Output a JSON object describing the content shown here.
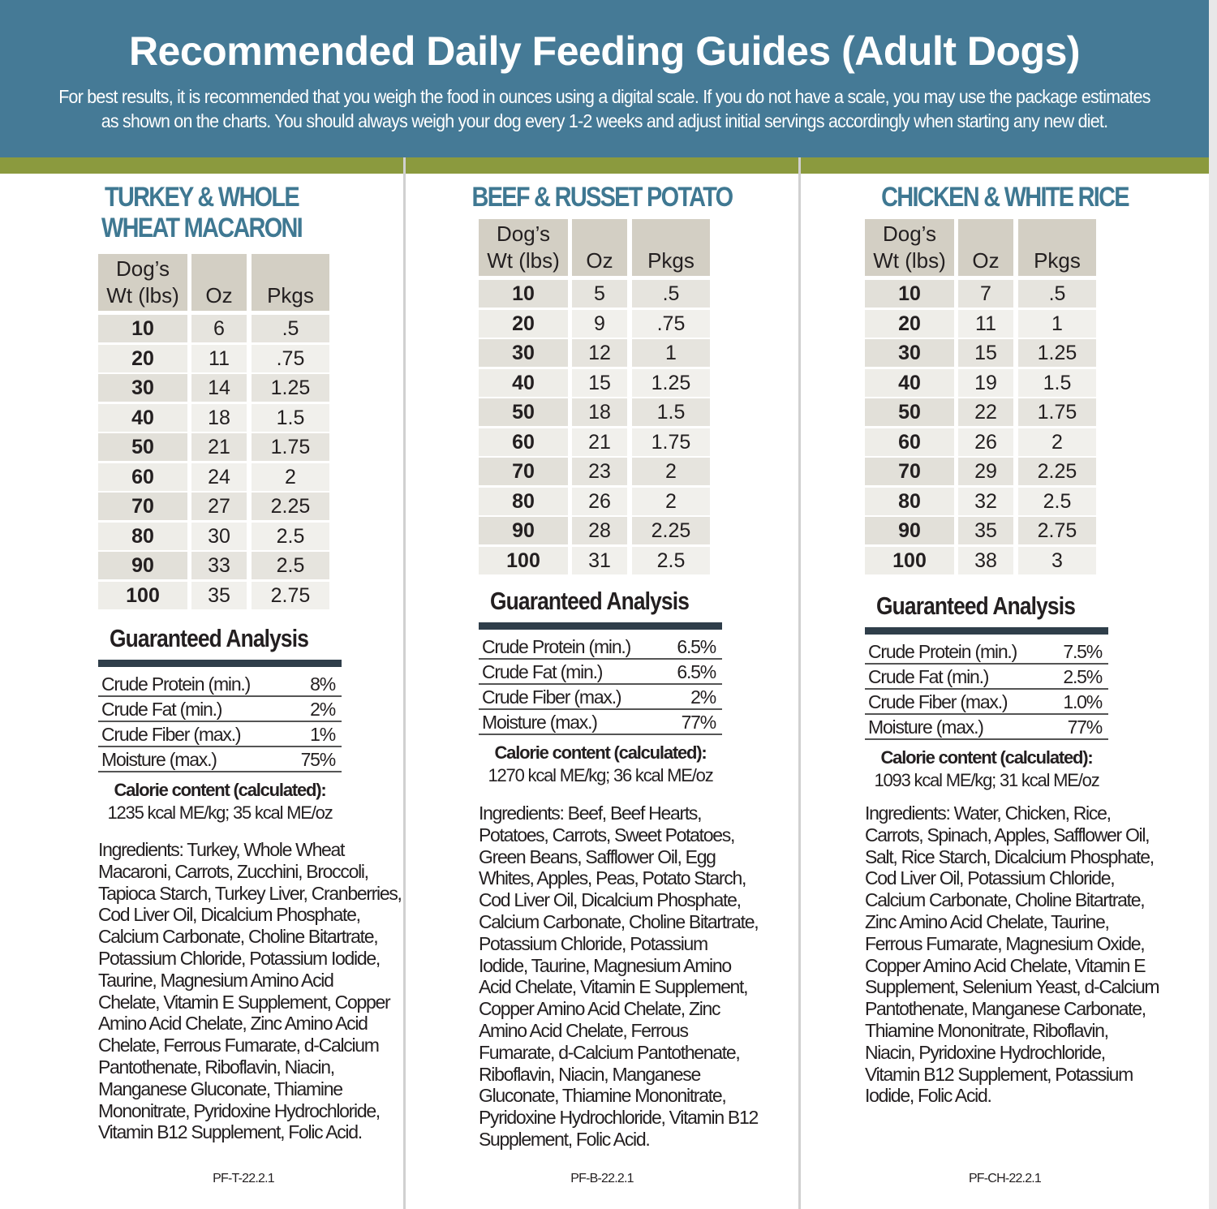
{
  "header": {
    "title": "Recommended Daily Feeding Guides (Adult Dogs)",
    "subtitle_line1": "For best results, it is recommended that you weigh the food in ounces using a digital scale. If you do not have a scale, you may use the package estimates",
    "subtitle_line2": "as shown on the charts. You should always weigh your dog every 1-2 weeks and adjust initial servings accordingly when starting any new diet."
  },
  "colors": {
    "header_bg": "#457a96",
    "stripe": "#8b9a3e",
    "product_title": "#3f7892",
    "table_header": "#d3cfc4"
  },
  "columns_headers": {
    "weight": [
      "Dog’s",
      "Wt (lbs)"
    ],
    "oz": "Oz",
    "pkgs": "Pkgs"
  },
  "analysis_title": "Guaranteed Analysis",
  "calorie_heading": "Calorie content (calculated):",
  "products": [
    {
      "title_lines": [
        "TURKEY & WHOLE",
        "WHEAT MACARONI"
      ],
      "rows": [
        [
          "10",
          "6",
          ".5"
        ],
        [
          "20",
          "11",
          ".75"
        ],
        [
          "30",
          "14",
          "1.25"
        ],
        [
          "40",
          "18",
          "1.5"
        ],
        [
          "50",
          "21",
          "1.75"
        ],
        [
          "60",
          "24",
          "2"
        ],
        [
          "70",
          "27",
          "2.25"
        ],
        [
          "80",
          "30",
          "2.5"
        ],
        [
          "90",
          "33",
          "2.5"
        ],
        [
          "100",
          "35",
          "2.75"
        ]
      ],
      "analysis": [
        [
          "Crude Protein (min.)",
          "8%"
        ],
        [
          "Crude Fat (min.)",
          "2%"
        ],
        [
          "Crude Fiber (max.)",
          "1%"
        ],
        [
          "Moisture (max.)",
          "75%"
        ]
      ],
      "calories": "1235 kcal ME/kg;  35 kcal ME/oz",
      "ingredients": [
        "Ingredients: Turkey, Whole Wheat",
        "Macaroni, Carrots, Zucchini, Broccoli,",
        "Tapioca Starch, Turkey Liver, Cranberries,",
        "Cod Liver Oil, Dicalcium Phosphate,",
        "Calcium Carbonate, Choline Bitartrate,",
        "Potassium Chloride, Potassium Iodide,",
        "Taurine, Magnesium Amino Acid",
        "Chelate, Vitamin E Supplement, Copper",
        "Amino Acid Chelate, Zinc Amino Acid",
        "Chelate, Ferrous Fumarate, d-Calcium",
        "Pantothenate, Riboflavin, Niacin,",
        "Manganese Gluconate, Thiamine",
        "Mononitrate, Pyridoxine Hydrochloride,",
        "Vitamin B12 Supplement, Folic Acid."
      ],
      "code": "PF-T-22.2.1"
    },
    {
      "title_lines": [
        "BEEF & RUSSET POTATO"
      ],
      "rows": [
        [
          "10",
          "5",
          ".5"
        ],
        [
          "20",
          "9",
          ".75"
        ],
        [
          "30",
          "12",
          "1"
        ],
        [
          "40",
          "15",
          "1.25"
        ],
        [
          "50",
          "18",
          "1.5"
        ],
        [
          "60",
          "21",
          "1.75"
        ],
        [
          "70",
          "23",
          "2"
        ],
        [
          "80",
          "26",
          "2"
        ],
        [
          "90",
          "28",
          "2.25"
        ],
        [
          "100",
          "31",
          "2.5"
        ]
      ],
      "analysis": [
        [
          "Crude Protein (min.)",
          "6.5%"
        ],
        [
          "Crude Fat (min.)",
          "6.5%"
        ],
        [
          "Crude Fiber (max.)",
          "2%"
        ],
        [
          "Moisture (max.)",
          "77%"
        ]
      ],
      "calories": "1270 kcal ME/kg;  36 kcal ME/oz",
      "ingredients": [
        "Ingredients: Beef, Beef Hearts,",
        "Potatoes, Carrots, Sweet Potatoes,",
        "Green Beans, Safflower Oil, Egg",
        "Whites, Apples, Peas, Potato Starch,",
        "Cod Liver Oil, Dicalcium Phosphate,",
        "Calcium Carbonate, Choline Bitartrate,",
        "Potassium Chloride, Potassium",
        "Iodide, Taurine, Magnesium Amino",
        "Acid Chelate, Vitamin E Supplement,",
        "Copper Amino Acid Chelate, Zinc",
        "Amino Acid Chelate, Ferrous",
        "Fumarate, d-Calcium Pantothenate,",
        "Riboflavin, Niacin, Manganese",
        "Gluconate, Thiamine Mononitrate,",
        "Pyridoxine Hydrochloride, Vitamin B12",
        "Supplement, Folic Acid."
      ],
      "code": "PF-B-22.2.1"
    },
    {
      "title_lines": [
        "CHICKEN & WHITE RICE"
      ],
      "rows": [
        [
          "10",
          "7",
          ".5"
        ],
        [
          "20",
          "11",
          "1"
        ],
        [
          "30",
          "15",
          "1.25"
        ],
        [
          "40",
          "19",
          "1.5"
        ],
        [
          "50",
          "22",
          "1.75"
        ],
        [
          "60",
          "26",
          "2"
        ],
        [
          "70",
          "29",
          "2.25"
        ],
        [
          "80",
          "32",
          "2.5"
        ],
        [
          "90",
          "35",
          "2.75"
        ],
        [
          "100",
          "38",
          "3"
        ]
      ],
      "analysis": [
        [
          "Crude Protein (min.)",
          "7.5%"
        ],
        [
          "Crude Fat (min.)",
          "2.5%"
        ],
        [
          "Crude Fiber (max.)",
          "1.0%"
        ],
        [
          "Moisture (max.)",
          "77%"
        ]
      ],
      "calories": "1093 kcal ME/kg; 31 kcal ME/oz",
      "ingredients": [
        "Ingredients: Water, Chicken, Rice,",
        "Carrots, Spinach, Apples, Safflower Oil,",
        "Salt, Rice Starch, Dicalcium Phosphate,",
        "Cod Liver Oil, Potassium Chloride,",
        "Calcium Carbonate, Choline Bitartrate,",
        "Zinc Amino Acid Chelate, Taurine,",
        "Ferrous Fumarate, Magnesium Oxide,",
        "Copper Amino Acid Chelate, Vitamin E",
        "Supplement, Selenium Yeast, d-Calcium",
        "Pantothenate, Manganese Carbonate,",
        "Thiamine Mononitrate, Riboflavin,",
        "Niacin, Pyridoxine Hydrochloride,",
        "Vitamin B12 Supplement, Potassium",
        "Iodide, Folic Acid."
      ],
      "code": "PF-CH-22.2.1"
    }
  ]
}
